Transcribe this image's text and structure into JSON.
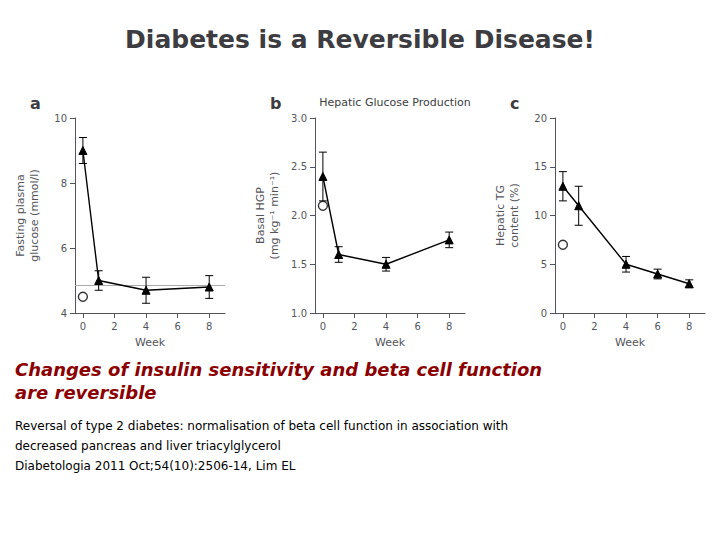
{
  "title": "Diabetes is a Reversible Disease!",
  "subtitle": "Hepatic Glucose Production",
  "annotations": [
    {
      "text": "Changes of insulin sensitivity and beta cell function\nare reversible",
      "color": "#8b0000"
    },
    {
      "text": "Reversal of type 2 diabetes: normalisation of beta cell function in association with"
    },
    {
      "text": "decreased pancreas and liver triacylglycerol"
    },
    {
      "text": "Diabetologia 2011 Oct;54(10):2506-14, Lim EL"
    }
  ],
  "chart_data": [
    {
      "type": "line",
      "title": "a",
      "xlabel": "Week",
      "ylabel": "Fasting plasma\nglucose (mmol/l)",
      "xlim": [
        -0.5,
        9
      ],
      "xticks": [
        0,
        2,
        4,
        6,
        8
      ],
      "ylim": [
        4,
        10
      ],
      "yticks": [
        4,
        6,
        8,
        10
      ],
      "grid": false,
      "series": [
        {
          "type": "line",
          "marker": "triangle",
          "line_style": "solid",
          "color": "#000000",
          "x": [
            0,
            1,
            4,
            8
          ],
          "values": [
            9.0,
            5.0,
            4.7,
            4.8
          ],
          "errors": [
            0.4,
            0.3,
            0.4,
            0.35
          ]
        },
        {
          "type": "scatter",
          "marker": "open_circle",
          "color": "#000000",
          "x": [
            0
          ],
          "values": [
            4.5
          ]
        }
      ],
      "hlines": [
        {
          "y": 4.85,
          "color": "#aaaaaa"
        }
      ]
    },
    {
      "type": "line",
      "title": "b",
      "xlabel": "Week",
      "ylabel": "Basal HGP\n(mg kg⁻¹ min⁻¹)",
      "xlim": [
        -0.5,
        9
      ],
      "xticks": [
        0,
        2,
        4,
        6,
        8
      ],
      "ylim": [
        1.0,
        3.0
      ],
      "yticks": [
        {
          "value": 1.0,
          "label": "1.0"
        },
        {
          "value": 1.5,
          "label": "1.5"
        },
        {
          "value": 2.0,
          "label": "2.0"
        },
        {
          "value": 2.5,
          "label": "2.5"
        },
        {
          "value": 3.0,
          "label": "3.0"
        }
      ],
      "grid": false,
      "series": [
        {
          "type": "line",
          "marker": "triangle",
          "line_style": "solid",
          "color": "#000000",
          "x": [
            0,
            1,
            4,
            8
          ],
          "values": [
            2.4,
            1.6,
            1.5,
            1.75
          ],
          "errors": [
            0.25,
            0.08,
            0.07,
            0.08
          ]
        },
        {
          "type": "scatter",
          "marker": "open_circle",
          "color": "#000000",
          "x": [
            0
          ],
          "values": [
            2.1
          ]
        }
      ]
    },
    {
      "type": "line",
      "title": "c",
      "xlabel": "Week",
      "ylabel": "Hepatic TG\ncontent (%)",
      "xlim": [
        -0.5,
        9
      ],
      "xticks": [
        0,
        2,
        4,
        6,
        8
      ],
      "ylim": [
        0,
        20
      ],
      "yticks": [
        0,
        5,
        10,
        15,
        20
      ],
      "grid": false,
      "series": [
        {
          "type": "line",
          "marker": "triangle",
          "line_style": "solid",
          "color": "#000000",
          "x": [
            0,
            1,
            4,
            6,
            8
          ],
          "values": [
            13.0,
            11.0,
            5.0,
            4.0,
            3.0
          ],
          "errors": [
            1.5,
            2.0,
            0.8,
            0.5,
            0.4
          ]
        },
        {
          "type": "scatter",
          "marker": "open_circle",
          "color": "#000000",
          "x": [
            0
          ],
          "values": [
            7.0
          ]
        }
      ]
    }
  ]
}
